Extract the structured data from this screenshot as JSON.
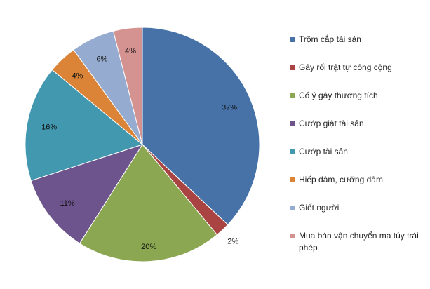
{
  "chart_data": {
    "type": "pie",
    "title": "",
    "categories": [
      "Trộm cắp tài sản",
      "Gây rối trật tự công cộng",
      "Cố ý gây thương tích",
      "Cướp giật tài sản",
      "Cướp tài sản",
      "Hiếp dâm, cưỡng dâm",
      "Giết người",
      "Mua bán vận chuyển ma túy trái phép"
    ],
    "values": [
      37,
      2,
      20,
      11,
      16,
      4,
      6,
      4
    ],
    "labels": [
      "37%",
      "2%",
      "20%",
      "11%",
      "16%",
      "4%",
      "6%",
      "4%"
    ],
    "colors": [
      "#4672A8",
      "#A94442",
      "#8BA752",
      "#6E548D",
      "#4198AF",
      "#DB8438",
      "#95ABCF",
      "#D49391"
    ],
    "legend_position": "right"
  }
}
